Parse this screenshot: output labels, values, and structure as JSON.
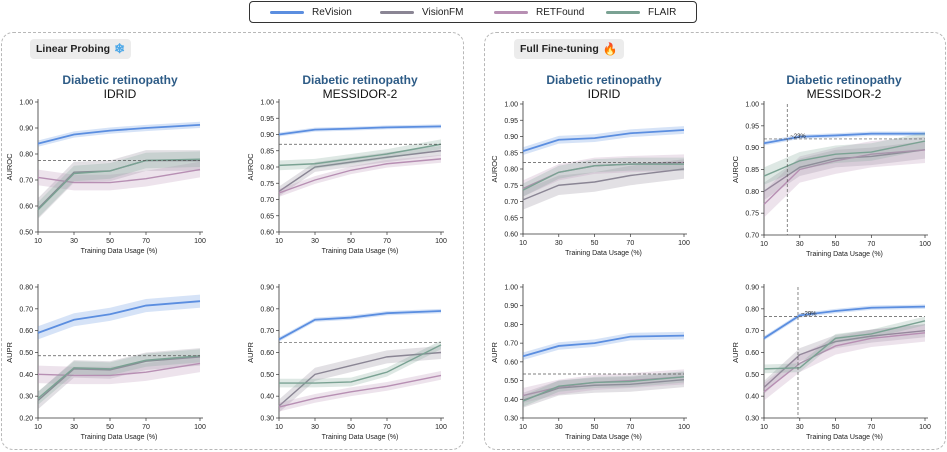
{
  "legend": {
    "items": [
      {
        "label": "ReVision",
        "color": "#5b8ee0"
      },
      {
        "label": "VisionFM",
        "color": "#8a8594"
      },
      {
        "label": "RETFound",
        "color": "#b78fb3"
      },
      {
        "label": "FLAIR",
        "color": "#7aa293"
      }
    ]
  },
  "panels": {
    "linear": {
      "label": "Linear Probing",
      "icon": "❄"
    },
    "full": {
      "label": "Full Fine-tuning",
      "icon": "🔥"
    }
  },
  "titles": {
    "c1": {
      "task": "Diabetic retinopathy",
      "dataset": "IDRID"
    },
    "c2": {
      "task": "Diabetic retinopathy",
      "dataset": "MESSIDOR-2"
    },
    "c3": {
      "task": "Diabetic retinopathy",
      "dataset": "IDRID"
    },
    "c4": {
      "task": "Diabetic retinopathy",
      "dataset": "MESSIDOR-2"
    }
  },
  "chart_data": [
    {
      "id": "lp_idrid_auroc",
      "type": "line",
      "xlabel": "Training Data Usage (%)",
      "ylabel": "AUROC",
      "x": [
        10,
        30,
        50,
        70,
        100
      ],
      "ylim": [
        0.5,
        1.0
      ],
      "yticks": [
        "0.50",
        "0.60",
        "0.70",
        "0.80",
        "0.90",
        "1.00"
      ],
      "hline": 0.775,
      "series": [
        {
          "name": "ReVision",
          "values": [
            0.84,
            0.875,
            0.89,
            0.9,
            0.912
          ],
          "band": 0.012
        },
        {
          "name": "VisionFM",
          "values": [
            0.59,
            0.73,
            0.735,
            0.775,
            0.775
          ],
          "band": 0.04
        },
        {
          "name": "RETFound",
          "values": [
            0.71,
            0.69,
            0.69,
            0.705,
            0.74
          ],
          "band": 0.03
        },
        {
          "name": "FLAIR",
          "values": [
            0.585,
            0.725,
            0.735,
            0.775,
            0.78
          ],
          "band": 0.03
        }
      ]
    },
    {
      "id": "lp_messidor_auroc",
      "type": "line",
      "xlabel": "Training Data Usage (%)",
      "ylabel": "AUROC",
      "x": [
        10,
        30,
        50,
        70,
        100
      ],
      "ylim": [
        0.6,
        1.0
      ],
      "yticks": [
        "0.60",
        "0.65",
        "0.70",
        "0.75",
        "0.80",
        "0.85",
        "0.90",
        "0.95",
        "1.00"
      ],
      "hline": 0.87,
      "series": [
        {
          "name": "ReVision",
          "values": [
            0.9,
            0.915,
            0.918,
            0.922,
            0.925
          ],
          "band": 0.006
        },
        {
          "name": "VisionFM",
          "values": [
            0.725,
            0.8,
            0.815,
            0.83,
            0.85
          ],
          "band": 0.015
        },
        {
          "name": "RETFound",
          "values": [
            0.72,
            0.76,
            0.79,
            0.81,
            0.825
          ],
          "band": 0.012
        },
        {
          "name": "FLAIR",
          "values": [
            0.805,
            0.81,
            0.825,
            0.84,
            0.87
          ],
          "band": 0.015
        }
      ]
    },
    {
      "id": "ft_idrid_auroc",
      "type": "line",
      "xlabel": "Training Data Usage (%)",
      "ylabel": "AUROC",
      "x": [
        10,
        30,
        50,
        70,
        100
      ],
      "ylim": [
        0.6,
        1.0
      ],
      "yticks": [
        "0.60",
        "0.65",
        "0.70",
        "0.75",
        "0.80",
        "0.85",
        "0.90",
        "0.95",
        "1.00"
      ],
      "hline": 0.82,
      "series": [
        {
          "name": "ReVision",
          "values": [
            0.855,
            0.89,
            0.895,
            0.91,
            0.92
          ],
          "band": 0.012
        },
        {
          "name": "VisionFM",
          "values": [
            0.705,
            0.75,
            0.76,
            0.78,
            0.8
          ],
          "band": 0.03
        },
        {
          "name": "RETFound",
          "values": [
            0.74,
            0.79,
            0.81,
            0.815,
            0.82
          ],
          "band": 0.025
        },
        {
          "name": "FLAIR",
          "values": [
            0.735,
            0.79,
            0.81,
            0.815,
            0.815
          ],
          "band": 0.02
        }
      ]
    },
    {
      "id": "ft_messidor_auroc",
      "type": "line",
      "xlabel": "Training Data Usage (%)",
      "ylabel": "AUROC",
      "x": [
        10,
        30,
        50,
        70,
        100
      ],
      "ylim": [
        0.7,
        1.0
      ],
      "yticks": [
        "0.70",
        "0.75",
        "0.80",
        "0.85",
        "0.90",
        "0.95",
        "1.00"
      ],
      "hline": 0.92,
      "vline": 23,
      "annotation": "~23%",
      "series": [
        {
          "name": "ReVision",
          "values": [
            0.91,
            0.925,
            0.928,
            0.932,
            0.932
          ],
          "band": 0.005
        },
        {
          "name": "VisionFM",
          "values": [
            0.8,
            0.855,
            0.875,
            0.88,
            0.895
          ],
          "band": 0.02
        },
        {
          "name": "RETFound",
          "values": [
            0.77,
            0.85,
            0.87,
            0.885,
            0.895
          ],
          "band": 0.03
        },
        {
          "name": "FLAIR",
          "values": [
            0.835,
            0.87,
            0.885,
            0.89,
            0.915
          ],
          "band": 0.02
        }
      ]
    },
    {
      "id": "lp_idrid_aupr",
      "type": "line",
      "xlabel": "Training Data Usage (%)",
      "ylabel": "AUPR",
      "x": [
        10,
        30,
        50,
        70,
        100
      ],
      "ylim": [
        0.2,
        0.8
      ],
      "yticks": [
        "0.20",
        "0.30",
        "0.40",
        "0.50",
        "0.60",
        "0.70",
        "0.80"
      ],
      "hline": 0.485,
      "series": [
        {
          "name": "ReVision",
          "values": [
            0.59,
            0.65,
            0.675,
            0.715,
            0.735
          ],
          "band": 0.03
        },
        {
          "name": "VisionFM",
          "values": [
            0.28,
            0.425,
            0.42,
            0.46,
            0.48
          ],
          "band": 0.04
        },
        {
          "name": "RETFound",
          "values": [
            0.4,
            0.395,
            0.395,
            0.41,
            0.45
          ],
          "band": 0.04
        },
        {
          "name": "FLAIR",
          "values": [
            0.29,
            0.43,
            0.425,
            0.465,
            0.485
          ],
          "band": 0.03
        }
      ]
    },
    {
      "id": "lp_messidor_aupr",
      "type": "line",
      "xlabel": "Training Data Usage (%)",
      "ylabel": "AUPR",
      "x": [
        10,
        30,
        50,
        70,
        100
      ],
      "ylim": [
        0.3,
        0.9
      ],
      "yticks": [
        "0.30",
        "0.40",
        "0.50",
        "0.60",
        "0.70",
        "0.80",
        "0.90"
      ],
      "hline": 0.645,
      "series": [
        {
          "name": "ReVision",
          "values": [
            0.66,
            0.75,
            0.76,
            0.78,
            0.79
          ],
          "band": 0.01
        },
        {
          "name": "VisionFM",
          "values": [
            0.355,
            0.5,
            0.54,
            0.58,
            0.6
          ],
          "band": 0.03
        },
        {
          "name": "RETFound",
          "values": [
            0.35,
            0.39,
            0.42,
            0.445,
            0.495
          ],
          "band": 0.02
        },
        {
          "name": "FLAIR",
          "values": [
            0.46,
            0.46,
            0.465,
            0.51,
            0.635
          ],
          "band": 0.02
        }
      ]
    },
    {
      "id": "ft_idrid_aupr",
      "type": "line",
      "xlabel": "Training Data Usage (%)",
      "ylabel": "AUPR",
      "x": [
        10,
        30,
        50,
        70,
        100
      ],
      "ylim": [
        0.3,
        1.0
      ],
      "yticks": [
        "0.30",
        "0.40",
        "0.50",
        "0.60",
        "0.70",
        "0.80",
        "0.90",
        "1.00"
      ],
      "hline": 0.535,
      "series": [
        {
          "name": "ReVision",
          "values": [
            0.63,
            0.685,
            0.7,
            0.735,
            0.74
          ],
          "band": 0.02
        },
        {
          "name": "VisionFM",
          "values": [
            0.395,
            0.46,
            0.475,
            0.48,
            0.505
          ],
          "band": 0.04
        },
        {
          "name": "RETFound",
          "values": [
            0.42,
            0.465,
            0.49,
            0.5,
            0.52
          ],
          "band": 0.04
        },
        {
          "name": "FLAIR",
          "values": [
            0.39,
            0.47,
            0.49,
            0.495,
            0.52
          ],
          "band": 0.03
        }
      ]
    },
    {
      "id": "ft_messidor_aupr",
      "type": "line",
      "xlabel": "Training Data Usage (%)",
      "ylabel": "AUPR",
      "x": [
        10,
        30,
        50,
        70,
        100
      ],
      "ylim": [
        0.3,
        0.9
      ],
      "yticks": [
        "0.30",
        "0.40",
        "0.50",
        "0.60",
        "0.70",
        "0.80",
        "0.90"
      ],
      "hline": 0.765,
      "vline": 29,
      "annotation": "~29%",
      "series": [
        {
          "name": "ReVision",
          "values": [
            0.665,
            0.77,
            0.79,
            0.805,
            0.81
          ],
          "band": 0.01
        },
        {
          "name": "VisionFM",
          "values": [
            0.44,
            0.59,
            0.65,
            0.675,
            0.7
          ],
          "band": 0.03
        },
        {
          "name": "RETFound",
          "values": [
            0.42,
            0.55,
            0.63,
            0.665,
            0.69
          ],
          "band": 0.04
        },
        {
          "name": "FLAIR",
          "values": [
            0.525,
            0.53,
            0.665,
            0.685,
            0.745
          ],
          "band": 0.02
        }
      ]
    }
  ]
}
